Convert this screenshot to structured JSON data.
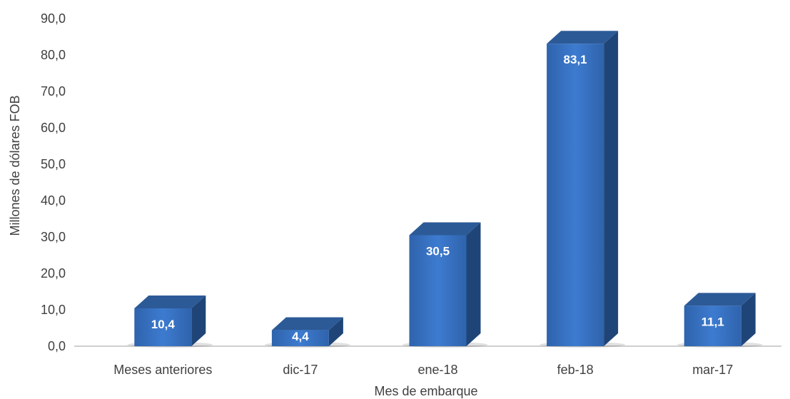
{
  "chart_data": {
    "type": "bar",
    "categories": [
      "Meses anteriores",
      "dic-17",
      "ene-18",
      "feb-18",
      "mar-17"
    ],
    "values": [
      10.4,
      4.4,
      30.5,
      83.1,
      11.1
    ],
    "data_labels": [
      "10,4",
      "4,4",
      "30,5",
      "83,1",
      "11,1"
    ],
    "title": "",
    "xlabel": "Mes de embarque",
    "ylabel": "Millones de dólares FOB",
    "ylim": [
      0,
      90
    ],
    "yticks": [
      0,
      10,
      20,
      30,
      40,
      50,
      60,
      70,
      80,
      90
    ],
    "ytick_labels": [
      "0,0",
      "10,0",
      "20,0",
      "30,0",
      "40,0",
      "50,0",
      "60,0",
      "70,0",
      "80,0",
      "90,0"
    ],
    "grid": false,
    "legend": "none",
    "style": "3d-column",
    "colors": {
      "bar_front": "#3a74c4",
      "bar_side": "#1f4578",
      "bar_top": "#2c5a97",
      "axis_line": "#bfbfbf",
      "text": "#404040",
      "data_label": "#ffffff"
    }
  }
}
